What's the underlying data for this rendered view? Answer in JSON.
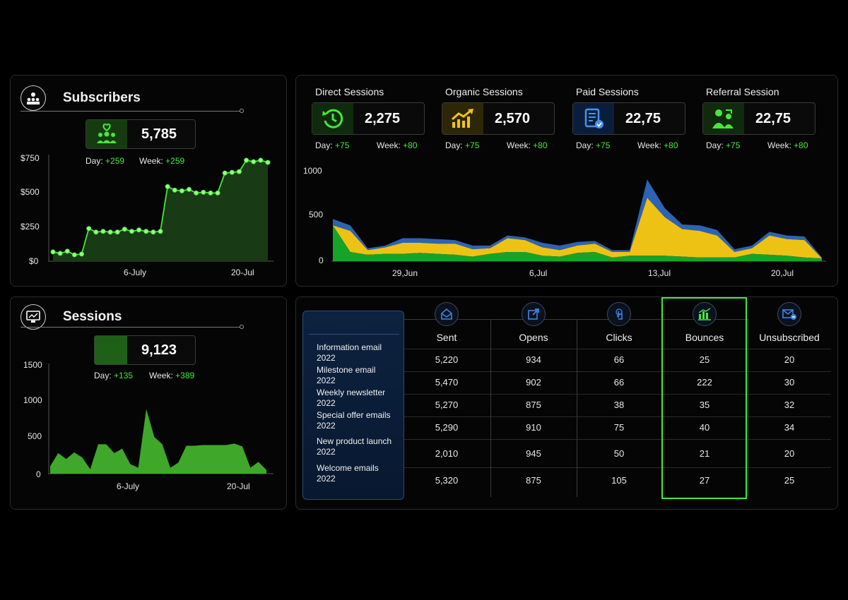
{
  "subscribers": {
    "title": "Subscribers",
    "value": "5,785",
    "day_label": "Day:",
    "day_value": "+259",
    "week_label": "Week:",
    "week_value": "+259",
    "y_ticks": [
      "$750",
      "$500",
      "$250",
      "$0"
    ],
    "x_ticks": [
      "6-July",
      "20-Jul"
    ]
  },
  "sessions": {
    "title": "Sessions",
    "value": "9,123",
    "day_label": "Day:",
    "day_value": "+135",
    "week_label": "Week:",
    "week_value": "+389",
    "y_ticks": [
      "1500",
      "1000",
      "500",
      "0"
    ],
    "x_ticks": [
      "6-July",
      "20-Jul"
    ]
  },
  "kpis": [
    {
      "label": "Direct Sessions",
      "value": "2,275",
      "day_label": "Day:",
      "day_value": "+75",
      "week_label": "Week:",
      "week_value": "+80",
      "icon": "clock-arrow-icon",
      "color": "#46e838"
    },
    {
      "label": "Organic Sessions",
      "value": "2,570",
      "day_label": "Day:",
      "day_value": "+75",
      "week_label": "Week:",
      "week_value": "+80",
      "icon": "trend-up-icon",
      "color": "#f2c21b"
    },
    {
      "label": "Paid Sessions",
      "value": "22,75",
      "day_label": "Day:",
      "day_value": "+75",
      "week_label": "Week:",
      "week_value": "+80",
      "icon": "paid-document-icon",
      "color": "#2d7ad6"
    },
    {
      "label": "Referral Session",
      "value": "22,75",
      "day_label": "Day:",
      "day_value": "+75",
      "week_label": "Week:",
      "week_value": "+80",
      "icon": "referral-people-icon",
      "color": "#46e838"
    }
  ],
  "area_chart": {
    "y_ticks": [
      "1000",
      "500",
      "0"
    ],
    "x_ticks": [
      "29,Jun",
      "6,Jul",
      "13,Jul",
      "20,Jul"
    ]
  },
  "email_table": {
    "columns": [
      {
        "label": "Sent",
        "icon": "envelope-open-icon"
      },
      {
        "label": "Opens",
        "icon": "open-external-icon"
      },
      {
        "label": "Clicks",
        "icon": "click-hand-icon"
      },
      {
        "label": "Bounces",
        "icon": "bar-chart-icon"
      },
      {
        "label": "Unsubscribed",
        "icon": "envelope-minus-icon"
      }
    ],
    "rows": [
      {
        "name": "Information email",
        "year": "2022",
        "values": [
          "5,220",
          "934",
          "66",
          "25",
          "20"
        ]
      },
      {
        "name": "Milestone email",
        "year": "2022",
        "values": [
          "5,470",
          "902",
          "66",
          "222",
          "30"
        ]
      },
      {
        "name": "Weekly newsletter",
        "year": "2022",
        "values": [
          "5,270",
          "875",
          "38",
          "35",
          "32"
        ]
      },
      {
        "name": "Special offer emails",
        "year": "2022",
        "values": [
          "5,290",
          "910",
          "75",
          "40",
          "34"
        ]
      },
      {
        "name": "New product launch",
        "year": "2022",
        "values": [
          "2,010",
          "945",
          "50",
          "21",
          "20"
        ]
      },
      {
        "name": "Welcome emails",
        "year": "2022",
        "values": [
          "5,320",
          "875",
          "105",
          "27",
          "25"
        ]
      }
    ],
    "highlight_color": "#46e838"
  },
  "chart_data": [
    {
      "type": "line",
      "ylim": [
        0,
        750
      ],
      "values": [
        65,
        55,
        70,
        45,
        50,
        230,
        205,
        210,
        205,
        205,
        225,
        210,
        220,
        210,
        205,
        210,
        525,
        500,
        495,
        505,
        480,
        485,
        480,
        480,
        620,
        625,
        630,
        710,
        700,
        710,
        695
      ],
      "fill_color": "#183a14",
      "line_color": "#46e838"
    },
    {
      "type": "area",
      "ylim": [
        0,
        1500
      ],
      "values": [
        100,
        280,
        200,
        290,
        220,
        60,
        400,
        400,
        280,
        340,
        130,
        80,
        880,
        500,
        400,
        80,
        150,
        380,
        380,
        390,
        390,
        390,
        390,
        410,
        370,
        80,
        160,
        50
      ],
      "color": "#3fa82a"
    },
    {
      "type": "area",
      "ylim": [
        0,
        1000
      ],
      "stacked": true,
      "series": [
        {
          "color": "#16a32a",
          "values": [
            390,
            100,
            70,
            80,
            80,
            90,
            80,
            70,
            50,
            80,
            100,
            100,
            60,
            50,
            90,
            100,
            40,
            60,
            60,
            60,
            50,
            40,
            40,
            40,
            80,
            70,
            60,
            40,
            30
          ]
        },
        {
          "color": "#eec214",
          "values": [
            0,
            230,
            50,
            70,
            120,
            110,
            110,
            120,
            80,
            60,
            150,
            130,
            90,
            70,
            80,
            90,
            60,
            40,
            630,
            420,
            300,
            290,
            240,
            60,
            60,
            210,
            180,
            190,
            0
          ]
        },
        {
          "color": "#2d63b3",
          "values": [
            70,
            60,
            20,
            20,
            50,
            50,
            50,
            40,
            40,
            30,
            30,
            30,
            50,
            50,
            40,
            30,
            20,
            20,
            200,
            100,
            50,
            60,
            60,
            30,
            30,
            40,
            40,
            40,
            10
          ]
        }
      ]
    }
  ]
}
